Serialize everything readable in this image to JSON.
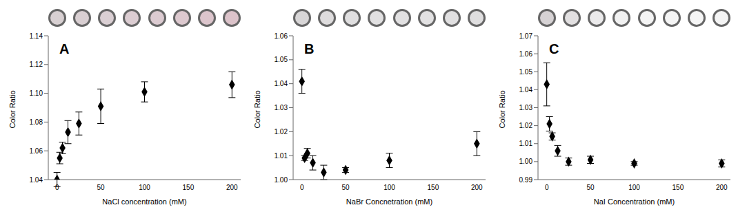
{
  "chart_data": [
    {
      "type": "scatter",
      "annotation": "A",
      "x_label": "NaCl concentration (mM)",
      "y_label": "Color Ratio",
      "x": [
        0,
        3.125,
        6.25,
        12.5,
        25,
        50,
        100,
        200
      ],
      "values": [
        1.04,
        1.055,
        1.062,
        1.073,
        1.079,
        1.091,
        1.101,
        1.106
      ],
      "errors": [
        0.005,
        0.004,
        0.004,
        0.008,
        0.008,
        0.012,
        0.007,
        0.009
      ],
      "color": "#000000",
      "marker": "diamond",
      "xlim": [
        -10,
        210
      ],
      "xticks": [
        0,
        50,
        100,
        150,
        200
      ],
      "ylim": [
        1.04,
        1.14
      ],
      "yticks": [
        1.04,
        1.06,
        1.08,
        {
          "value": 1.1,
          "label": "1.10"
        },
        1.12,
        1.14
      ]
    },
    {
      "type": "scatter",
      "annotation": "B",
      "x_label": "NaBr Concnetration (mM)",
      "y_label": "Color Ratio",
      "x": [
        0,
        3.125,
        6.25,
        12.5,
        25,
        50,
        100,
        200
      ],
      "values": [
        1.041,
        1.009,
        1.011,
        1.007,
        1.003,
        1.004,
        1.008,
        1.015
      ],
      "errors": [
        0.005,
        0.001,
        0.002,
        0.003,
        0.003,
        0.001,
        0.003,
        0.005
      ],
      "color": "#000000",
      "marker": "diamond",
      "xlim": [
        -10,
        210
      ],
      "xticks": [
        0,
        50,
        100,
        150,
        200
      ],
      "ylim": [
        1.0,
        1.06
      ],
      "yticks": [
        {
          "value": 1,
          "label": "1.00"
        },
        1.01,
        1.02,
        1.03,
        1.04,
        1.05,
        1.06
      ]
    },
    {
      "type": "scatter",
      "annotation": "C",
      "x_label": "NaI Concentration (mM)",
      "y_label": "Color Ratio",
      "x": [
        0,
        3.125,
        6.25,
        12.5,
        25,
        50,
        100,
        200
      ],
      "values": [
        1.043,
        1.021,
        1.014,
        1.006,
        1.0,
        1.001,
        0.999,
        0.999
      ],
      "errors": [
        0.012,
        0.004,
        0.002,
        0.003,
        0.002,
        0.002,
        0.001,
        0.002
      ],
      "color": "#000000",
      "marker": "diamond",
      "xlim": [
        -10,
        210
      ],
      "xticks": [
        0,
        50,
        100,
        150,
        200
      ],
      "ylim": [
        0.99,
        1.07
      ],
      "yticks": [
        0.99,
        {
          "value": 1,
          "label": "1.00"
        },
        1.01,
        1.02,
        1.03,
        1.04,
        1.05,
        1.06,
        1.07
      ]
    }
  ]
}
